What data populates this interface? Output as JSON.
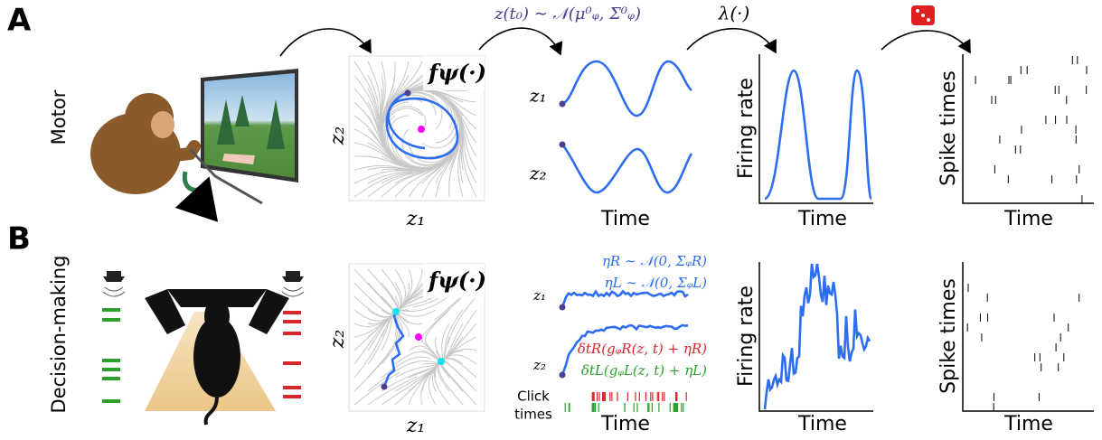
{
  "steps": {
    "initial_condition": "z(t₀) ∼ 𝒩(μ⁰ᵩ, Σ⁰ᵩ)",
    "rate_map": "λ(·)"
  },
  "panel_a": {
    "label": "A",
    "row_label": "Motor",
    "dynamics": "fψ(·)",
    "phase_x": "z₁",
    "phase_y": "z₂",
    "latents": [
      "z₁",
      "z₂"
    ],
    "latent_x": "Time",
    "rate_y": "Firing rate",
    "rate_x": "Time",
    "spike_y": "Spike times",
    "spike_x": "Time"
  },
  "panel_b": {
    "label": "B",
    "row_label": "Decision-making",
    "dynamics": "fψ(·)",
    "phase_x": "z₁",
    "phase_y": "z₂",
    "latents": [
      "z₁",
      "z₂"
    ],
    "noise": [
      "ηR ∼ 𝒩(0, ΣᵩR)",
      "ηL ∼ 𝒩(0, ΣᵩL)"
    ],
    "inputs": [
      "δtR(gᵩR(z, t) + ηR)",
      "δtL(gᵩL(z, t) + ηL)"
    ],
    "clicks_label": [
      "Click",
      "times"
    ],
    "latent_x": "Time",
    "rate_y": "Firing rate",
    "rate_x": "Time",
    "spike_y": "Spike times",
    "spike_x": "Time"
  }
}
